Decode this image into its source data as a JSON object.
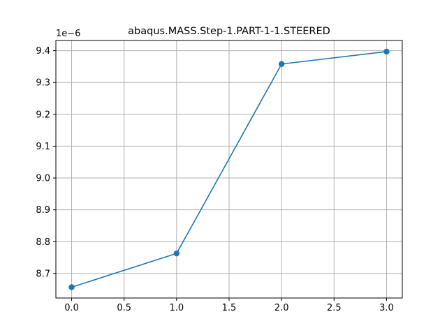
{
  "chart_data": {
    "type": "line",
    "title": "abaqus.MASS.Step-1.PART-1-1.STEERED",
    "xlabel": "",
    "ylabel": "",
    "y_offset_label": "1e−6",
    "x_ticks": [
      "0.0",
      "0.5",
      "1.0",
      "1.5",
      "2.0",
      "2.5",
      "3.0"
    ],
    "y_ticks": [
      "8.7",
      "8.8",
      "8.9",
      "9.0",
      "9.1",
      "9.2",
      "9.3",
      "9.4"
    ],
    "xlim": [
      -0.15,
      3.15
    ],
    "ylim": [
      8.623,
      9.432
    ],
    "grid": true,
    "series": [
      {
        "color": "#1f77b4",
        "marker": "circle",
        "x": [
          0,
          1,
          2,
          3
        ],
        "y": [
          8.657,
          8.763,
          9.358,
          9.397
        ]
      }
    ]
  }
}
